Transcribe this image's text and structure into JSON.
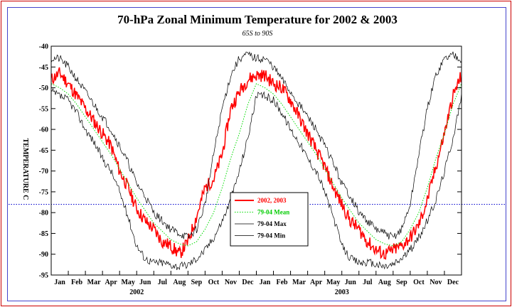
{
  "chart_data": {
    "type": "line",
    "title": "70-hPa Zonal Minimum Temperature for 2002 & 2003",
    "subtitle": "65S to 90S",
    "ylabel": "TEMPERATURE C",
    "xlabel": "",
    "ylim": [
      -95,
      -40
    ],
    "yticks": [
      -40,
      -45,
      -50,
      -55,
      -60,
      -65,
      -70,
      -75,
      -80,
      -85,
      -90,
      -95
    ],
    "month_labels": [
      "Jan",
      "Feb",
      "Mar",
      "Apr",
      "May",
      "Jun",
      "Jul",
      "Aug",
      "Sep",
      "Oct",
      "Nov",
      "Dec",
      "Jan",
      "Feb",
      "Mar",
      "Apr",
      "May",
      "Jun",
      "Jul",
      "Aug",
      "Sep",
      "Oct",
      "Nov",
      "Dec"
    ],
    "year_labels": [
      "2002",
      "2003"
    ],
    "reference_line": {
      "y": -78,
      "color": "#0000cc"
    },
    "legend_position": "center",
    "legend": {
      "entries": [
        {
          "label": "2002, 2003",
          "color": "#ff0000"
        },
        {
          "label": "79-04 Mean",
          "color": "#00dd00"
        },
        {
          "label": "79-04 Max",
          "color": "#000000"
        },
        {
          "label": "79-04 Min",
          "color": "#000000"
        }
      ]
    },
    "x_months": [
      0,
      0.5,
      1,
      1.5,
      2,
      2.5,
      3,
      3.5,
      4,
      4.5,
      5,
      5.5,
      6,
      6.5,
      7,
      7.5,
      8,
      8.5,
      9,
      9.5,
      10,
      10.5,
      11,
      11.5,
      12,
      12.5,
      13,
      13.5,
      14,
      14.5,
      15,
      15.5,
      16,
      16.5,
      17,
      17.5,
      18,
      18.5,
      19,
      19.5,
      20,
      20.5,
      21,
      21.5,
      22,
      22.5,
      23,
      23.5,
      24
    ],
    "series": [
      {
        "name": "2002, 2003",
        "color": "#ff0000",
        "values": [
          -48,
          -46.5,
          -49,
          -52,
          -55,
          -58,
          -61,
          -64,
          -70,
          -74,
          -79,
          -82,
          -84,
          -87,
          -88,
          -90,
          -87,
          -81,
          -74,
          -72,
          -66,
          -55,
          -51,
          -48,
          -47,
          -47,
          -49,
          -50,
          -53,
          -57,
          -61,
          -65,
          -69,
          -74,
          -78,
          -82,
          -84,
          -87,
          -89,
          -90,
          -89,
          -88,
          -86,
          -83,
          -77,
          -69,
          -61,
          -52,
          -47
        ]
      },
      {
        "name": "79-04 Mean",
        "color": "#00dd00",
        "values": [
          -49,
          -50,
          -51.5,
          -54,
          -57,
          -60,
          -63,
          -66,
          -69.5,
          -73,
          -76.5,
          -79.5,
          -82.5,
          -84.5,
          -86.5,
          -87.5,
          -88,
          -87,
          -84,
          -80,
          -74,
          -67,
          -61,
          -54,
          -49,
          -50,
          -51.5,
          -54,
          -57,
          -60,
          -63,
          -66,
          -69.5,
          -73,
          -76.5,
          -79.5,
          -82.5,
          -84.5,
          -86.5,
          -87.5,
          -88,
          -87,
          -84,
          -80,
          -74,
          -67,
          -61,
          -54,
          -49
        ]
      },
      {
        "name": "79-04 Max",
        "color": "#000000",
        "values": [
          -43,
          -43,
          -45,
          -48,
          -51,
          -54,
          -57,
          -60,
          -64,
          -68,
          -73,
          -76,
          -80,
          -82,
          -84,
          -85,
          -86,
          -84,
          -78,
          -66,
          -55,
          -47,
          -43,
          -42,
          -43,
          -43,
          -45,
          -48,
          -51,
          -54,
          -57,
          -60,
          -64,
          -68,
          -73,
          -76,
          -80,
          -82,
          -84,
          -85,
          -86,
          -84,
          -78,
          -66,
          -55,
          -47,
          -43,
          -42,
          -43
        ]
      },
      {
        "name": "79-04 Min",
        "color": "#000000",
        "values": [
          -51,
          -52,
          -53,
          -56,
          -60,
          -63,
          -67,
          -70,
          -75,
          -81,
          -88,
          -91,
          -92,
          -92,
          -92.5,
          -93,
          -92.5,
          -91,
          -89,
          -86,
          -82,
          -77,
          -70,
          -62,
          -52,
          -52,
          -53,
          -56,
          -60,
          -63,
          -67,
          -70,
          -75,
          -81,
          -88,
          -91,
          -92,
          -92,
          -92.5,
          -93,
          -92.5,
          -91,
          -89,
          -86,
          -82,
          -77,
          -70,
          -62,
          -52
        ]
      }
    ]
  }
}
